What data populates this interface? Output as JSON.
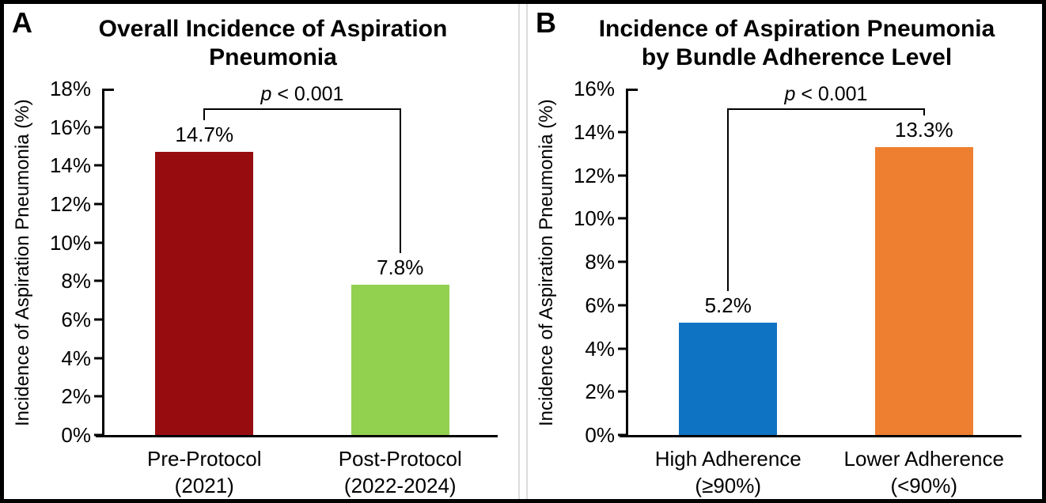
{
  "figure": {
    "background": "#ffffff",
    "border_color": "#000000",
    "divider_color": "#dcdcdc"
  },
  "chart_data": [
    {
      "type": "bar",
      "panel_letter": "A",
      "title": "Overall Incidence of Aspiration\nPneumonia",
      "ylabel": "Incidence of Aspiration Pneumonia (%)",
      "xlabel": "",
      "ylim": [
        0,
        18
      ],
      "ytick_step": 2,
      "yticks": [
        "0%",
        "2%",
        "4%",
        "6%",
        "8%",
        "10%",
        "12%",
        "14%",
        "16%",
        "18%"
      ],
      "grid": false,
      "legend": "none",
      "categories": [
        "Pre-Protocol\n(2021)",
        "Post-Protocol\n(2022-2024)"
      ],
      "values": [
        14.7,
        7.8
      ],
      "value_labels": [
        "14.7%",
        "7.8%"
      ],
      "bar_colors": [
        "#970D0F",
        "#92D050"
      ],
      "significance": {
        "p_italic": "p",
        "p_rest": " < 0.001"
      }
    },
    {
      "type": "bar",
      "panel_letter": "B",
      "title": "Incidence of Aspiration Pneumonia\nby Bundle Adherence Level",
      "ylabel": "Incidence of Aspiration Pneumonia (%)",
      "xlabel": "",
      "ylim": [
        0,
        16
      ],
      "ytick_step": 2,
      "yticks": [
        "0%",
        "2%",
        "4%",
        "6%",
        "8%",
        "10%",
        "12%",
        "14%",
        "16%"
      ],
      "grid": false,
      "legend": "none",
      "categories": [
        "High Adherence\n(≥90%)",
        "Lower Adherence\n(<90%)"
      ],
      "values": [
        5.2,
        13.3
      ],
      "value_labels": [
        "5.2%",
        "13.3%"
      ],
      "bar_colors": [
        "#0F73C4",
        "#EE7F31"
      ],
      "significance": {
        "p_italic": "p",
        "p_rest": " < 0.001"
      }
    }
  ]
}
